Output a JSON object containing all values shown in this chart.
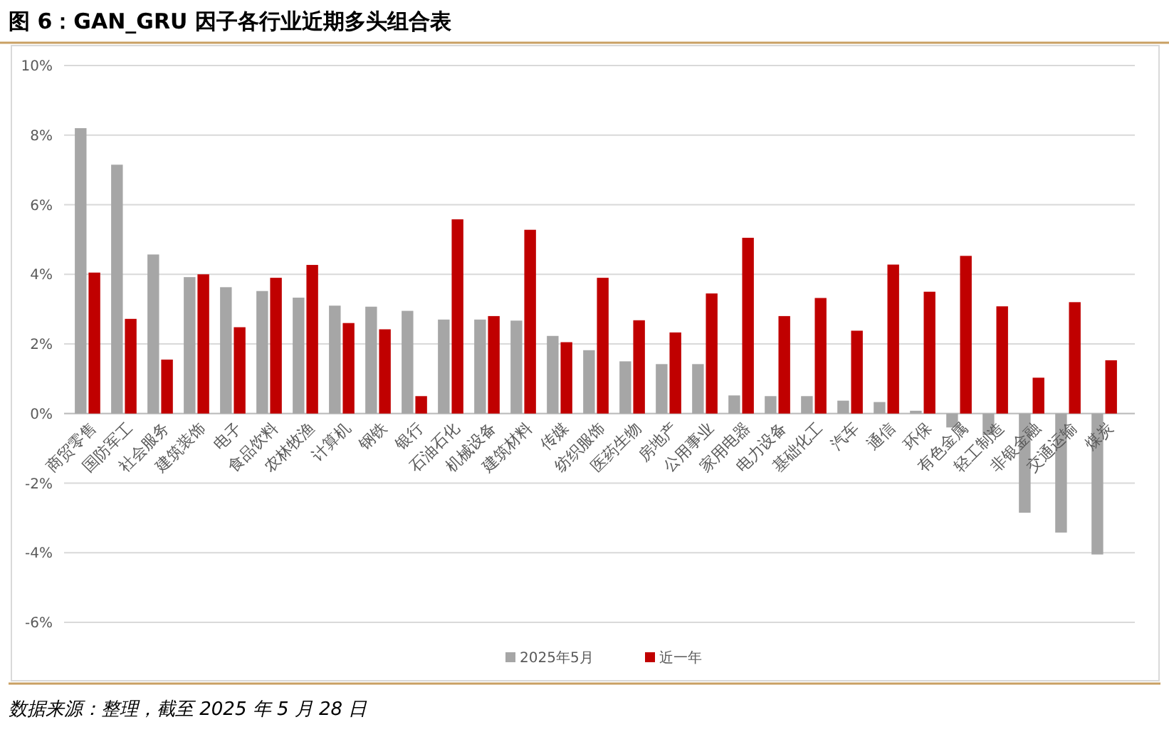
{
  "chart_data": {
    "type": "bar",
    "title": "图 6：GAN_GRU 因子各行业近期多头组合表",
    "categories": [
      "商贸零售",
      "国防军工",
      "社会服务",
      "建筑装饰",
      "电子",
      "食品饮料",
      "农林牧渔",
      "计算机",
      "钢铁",
      "银行",
      "石油石化",
      "机械设备",
      "建筑材料",
      "传媒",
      "纺织服饰",
      "医药生物",
      "房地产",
      "公用事业",
      "家用电器",
      "电力设备",
      "基础化工",
      "汽车",
      "通信",
      "环保",
      "有色金属",
      "轻工制造",
      "非银金融",
      "交通运输",
      "煤炭"
    ],
    "series": [
      {
        "name": "2025年5月",
        "color": "#a6a6a6",
        "values": [
          8.2,
          7.15,
          4.57,
          3.92,
          3.63,
          3.52,
          3.33,
          3.1,
          3.07,
          2.95,
          2.7,
          2.7,
          2.67,
          2.23,
          1.82,
          1.5,
          1.42,
          1.42,
          0.52,
          0.5,
          0.5,
          0.37,
          0.33,
          0.08,
          -0.4,
          -0.62,
          -2.85,
          -3.42,
          -4.05
        ]
      },
      {
        "name": "近一年",
        "color": "#c00000",
        "values": [
          4.05,
          2.72,
          1.55,
          4.0,
          2.48,
          3.9,
          4.27,
          2.6,
          2.42,
          0.5,
          5.58,
          2.8,
          5.28,
          2.05,
          3.9,
          2.68,
          2.33,
          3.45,
          5.05,
          2.8,
          3.32,
          2.38,
          4.28,
          3.5,
          4.53,
          3.08,
          1.03,
          3.2,
          1.53
        ]
      }
    ],
    "ylim": [
      -6,
      10
    ],
    "yticks": [
      {
        "value": -6,
        "label": "-6%"
      },
      {
        "value": -4,
        "label": "-4%"
      },
      {
        "value": -2,
        "label": "-2%"
      },
      {
        "value": 0,
        "label": "0%"
      },
      {
        "value": 2,
        "label": "2%"
      },
      {
        "value": 4,
        "label": "4%"
      },
      {
        "value": 6,
        "label": "6%"
      },
      {
        "value": 8,
        "label": "8%"
      },
      {
        "value": 10,
        "label": "10%"
      }
    ],
    "grid": "y",
    "legend": "bottom",
    "annotations": [
      "数据来源：整理，截至 2025 年 5 月 28 日"
    ]
  }
}
